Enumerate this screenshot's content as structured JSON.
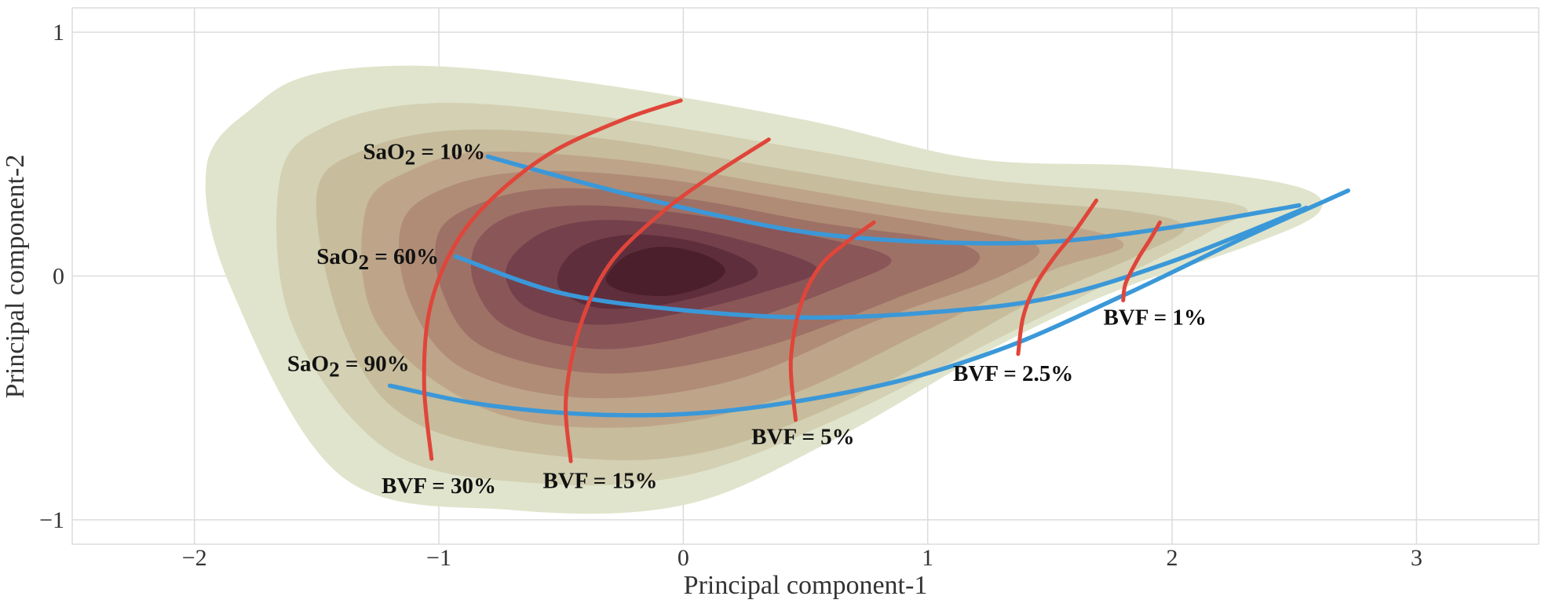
{
  "chart_data": {
    "type": "contour-density",
    "xlabel": "Principal component-1",
    "ylabel": "Principal component-2",
    "xlim": [
      -2.5,
      3.5
    ],
    "ylim": [
      -1.1,
      1.1
    ],
    "xticks": [
      -2,
      -1,
      0,
      1,
      2,
      3
    ],
    "xtick_labels": [
      "−2",
      "−1",
      "0",
      "1",
      "2",
      "3"
    ],
    "yticks": [
      -1,
      0,
      1
    ],
    "ytick_labels": [
      "−1",
      "0",
      "1"
    ],
    "grid": true,
    "density": {
      "center": [
        -0.2,
        0.02
      ],
      "levels": [
        {
          "color": "#e0e4cc",
          "points": [
            [
              -1.95,
              0.45
            ],
            [
              -1.75,
              0.7
            ],
            [
              -1.5,
              0.83
            ],
            [
              -1.0,
              0.86
            ],
            [
              -0.3,
              0.78
            ],
            [
              0.5,
              0.64
            ],
            [
              1.2,
              0.48
            ],
            [
              1.9,
              0.45
            ],
            [
              2.5,
              0.37
            ],
            [
              2.6,
              0.26
            ],
            [
              2.3,
              0.12
            ],
            [
              1.8,
              -0.05
            ],
            [
              1.3,
              -0.28
            ],
            [
              0.6,
              -0.68
            ],
            [
              0.0,
              -0.94
            ],
            [
              -0.7,
              -0.96
            ],
            [
              -1.4,
              -0.82
            ],
            [
              -1.85,
              -0.05
            ]
          ]
        },
        {
          "color": "#d3d0b3",
          "points": [
            [
              -1.65,
              0.4
            ],
            [
              -1.45,
              0.62
            ],
            [
              -1.0,
              0.71
            ],
            [
              -0.3,
              0.65
            ],
            [
              0.5,
              0.52
            ],
            [
              1.2,
              0.4
            ],
            [
              1.9,
              0.34
            ],
            [
              2.3,
              0.28
            ],
            [
              2.15,
              0.18
            ],
            [
              1.8,
              0.0
            ],
            [
              1.3,
              -0.25
            ],
            [
              0.6,
              -0.6
            ],
            [
              0.0,
              -0.82
            ],
            [
              -0.6,
              -0.85
            ],
            [
              -1.2,
              -0.72
            ],
            [
              -1.6,
              -0.2
            ]
          ]
        },
        {
          "color": "#c7bc9c",
          "points": [
            [
              -1.5,
              0.33
            ],
            [
              -1.3,
              0.52
            ],
            [
              -0.9,
              0.6
            ],
            [
              -0.3,
              0.56
            ],
            [
              0.4,
              0.44
            ],
            [
              1.1,
              0.33
            ],
            [
              1.8,
              0.27
            ],
            [
              2.05,
              0.2
            ],
            [
              1.85,
              0.08
            ],
            [
              1.4,
              -0.12
            ],
            [
              0.8,
              -0.45
            ],
            [
              0.1,
              -0.72
            ],
            [
              -0.5,
              -0.74
            ],
            [
              -1.1,
              -0.6
            ],
            [
              -1.38,
              -0.25
            ]
          ]
        },
        {
          "color": "#bea58a",
          "points": [
            [
              -1.3,
              0.27
            ],
            [
              -1.1,
              0.44
            ],
            [
              -0.8,
              0.51
            ],
            [
              -0.2,
              0.47
            ],
            [
              0.4,
              0.37
            ],
            [
              1.0,
              0.27
            ],
            [
              1.6,
              0.2
            ],
            [
              1.8,
              0.12
            ],
            [
              1.5,
              0.02
            ],
            [
              1.0,
              -0.22
            ],
            [
              0.4,
              -0.5
            ],
            [
              -0.2,
              -0.62
            ],
            [
              -0.8,
              -0.55
            ],
            [
              -1.25,
              -0.2
            ]
          ]
        },
        {
          "color": "#b08c76",
          "points": [
            [
              -1.15,
              0.22
            ],
            [
              -0.95,
              0.37
            ],
            [
              -0.6,
              0.43
            ],
            [
              -0.1,
              0.4
            ],
            [
              0.5,
              0.3
            ],
            [
              1.1,
              0.2
            ],
            [
              1.45,
              0.12
            ],
            [
              1.3,
              0.0
            ],
            [
              0.8,
              -0.18
            ],
            [
              0.2,
              -0.43
            ],
            [
              -0.4,
              -0.5
            ],
            [
              -0.9,
              -0.38
            ],
            [
              -1.12,
              -0.1
            ]
          ]
        },
        {
          "color": "#9e7166",
          "points": [
            [
              -1.0,
              0.18
            ],
            [
              -0.8,
              0.31
            ],
            [
              -0.5,
              0.36
            ],
            [
              0.0,
              0.32
            ],
            [
              0.55,
              0.22
            ],
            [
              1.1,
              0.14
            ],
            [
              1.2,
              0.05
            ],
            [
              0.9,
              -0.08
            ],
            [
              0.3,
              -0.3
            ],
            [
              -0.3,
              -0.4
            ],
            [
              -0.8,
              -0.3
            ],
            [
              -0.98,
              -0.08
            ]
          ]
        },
        {
          "color": "#8a5658",
          "points": [
            [
              -0.85,
              0.13
            ],
            [
              -0.7,
              0.25
            ],
            [
              -0.4,
              0.29
            ],
            [
              0.05,
              0.25
            ],
            [
              0.55,
              0.16
            ],
            [
              0.85,
              0.07
            ],
            [
              0.65,
              -0.04
            ],
            [
              0.2,
              -0.2
            ],
            [
              -0.3,
              -0.3
            ],
            [
              -0.7,
              -0.22
            ],
            [
              -0.85,
              -0.05
            ]
          ]
        },
        {
          "color": "#74404b",
          "points": [
            [
              -0.7,
              0.08
            ],
            [
              -0.55,
              0.19
            ],
            [
              -0.3,
              0.23
            ],
            [
              0.05,
              0.19
            ],
            [
              0.4,
              0.1
            ],
            [
              0.55,
              0.02
            ],
            [
              0.35,
              -0.06
            ],
            [
              0.0,
              -0.15
            ],
            [
              -0.35,
              -0.2
            ],
            [
              -0.62,
              -0.14
            ],
            [
              -0.72,
              -0.03
            ]
          ]
        },
        {
          "color": "#5f2e3c",
          "points": [
            [
              -0.5,
              0.04
            ],
            [
              -0.4,
              0.13
            ],
            [
              -0.2,
              0.17
            ],
            [
              0.05,
              0.14
            ],
            [
              0.25,
              0.07
            ],
            [
              0.3,
              0.0
            ],
            [
              0.15,
              -0.06
            ],
            [
              -0.1,
              -0.12
            ],
            [
              -0.35,
              -0.13
            ],
            [
              -0.5,
              -0.06
            ]
          ]
        },
        {
          "color": "#4c1f2d",
          "points": [
            [
              -0.3,
              0.02
            ],
            [
              -0.22,
              0.09
            ],
            [
              -0.08,
              0.12
            ],
            [
              0.08,
              0.09
            ],
            [
              0.17,
              0.03
            ],
            [
              0.12,
              -0.03
            ],
            [
              -0.05,
              -0.08
            ],
            [
              -0.22,
              -0.07
            ],
            [
              -0.31,
              -0.03
            ]
          ]
        }
      ]
    },
    "series": [
      {
        "name": "SaO2 = 10%",
        "kind": "saturation",
        "color": "#3b98d8",
        "points": [
          [
            -0.8,
            0.49
          ],
          [
            -0.4,
            0.38
          ],
          [
            0.0,
            0.28
          ],
          [
            0.5,
            0.18
          ],
          [
            1.0,
            0.14
          ],
          [
            1.5,
            0.14
          ],
          [
            2.0,
            0.2
          ],
          [
            2.52,
            0.29
          ]
        ]
      },
      {
        "name": "SaO2 = 60%",
        "kind": "saturation",
        "color": "#3b98d8",
        "points": [
          [
            -0.93,
            0.08
          ],
          [
            -0.5,
            -0.07
          ],
          [
            0.0,
            -0.14
          ],
          [
            0.5,
            -0.17
          ],
          [
            1.0,
            -0.15
          ],
          [
            1.5,
            -0.09
          ],
          [
            2.0,
            0.06
          ],
          [
            2.55,
            0.28
          ]
        ]
      },
      {
        "name": "SaO2 = 90%",
        "kind": "saturation",
        "color": "#3b98d8",
        "points": [
          [
            -1.2,
            -0.45
          ],
          [
            -0.8,
            -0.53
          ],
          [
            -0.3,
            -0.57
          ],
          [
            0.2,
            -0.55
          ],
          [
            0.8,
            -0.45
          ],
          [
            1.3,
            -0.3
          ],
          [
            1.8,
            -0.08
          ],
          [
            2.3,
            0.16
          ],
          [
            2.72,
            0.35
          ]
        ]
      },
      {
        "name": "BVF = 30%",
        "kind": "bvf",
        "color": "#e0453a",
        "points": [
          [
            -1.03,
            -0.75
          ],
          [
            -1.06,
            -0.45
          ],
          [
            -1.04,
            -0.15
          ],
          [
            -0.95,
            0.1
          ],
          [
            -0.8,
            0.3
          ],
          [
            -0.55,
            0.5
          ],
          [
            -0.25,
            0.64
          ],
          [
            -0.01,
            0.72
          ]
        ]
      },
      {
        "name": "BVF = 15%",
        "kind": "bvf",
        "color": "#e0453a",
        "points": [
          [
            -0.46,
            -0.76
          ],
          [
            -0.48,
            -0.5
          ],
          [
            -0.42,
            -0.2
          ],
          [
            -0.3,
            0.05
          ],
          [
            -0.1,
            0.25
          ],
          [
            0.1,
            0.4
          ],
          [
            0.35,
            0.56
          ]
        ]
      },
      {
        "name": "BVF = 5%",
        "kind": "bvf",
        "color": "#e0453a",
        "points": [
          [
            0.46,
            -0.59
          ],
          [
            0.44,
            -0.35
          ],
          [
            0.48,
            -0.12
          ],
          [
            0.56,
            0.04
          ],
          [
            0.67,
            0.14
          ],
          [
            0.78,
            0.22
          ]
        ]
      },
      {
        "name": "BVF = 2.5%",
        "kind": "bvf",
        "color": "#e0453a",
        "points": [
          [
            1.37,
            -0.32
          ],
          [
            1.39,
            -0.17
          ],
          [
            1.44,
            -0.04
          ],
          [
            1.52,
            0.08
          ],
          [
            1.6,
            0.18
          ],
          [
            1.69,
            0.31
          ]
        ]
      },
      {
        "name": "BVF = 1%",
        "kind": "bvf",
        "color": "#e0453a",
        "points": [
          [
            1.8,
            -0.1
          ],
          [
            1.81,
            -0.03
          ],
          [
            1.86,
            0.07
          ],
          [
            1.91,
            0.15
          ],
          [
            1.95,
            0.22
          ]
        ]
      }
    ],
    "annotations": [
      {
        "prefix": "SaO",
        "sub": "2",
        "suffix": " = 10%",
        "x": -0.81,
        "y": 0.48,
        "anchor": "end"
      },
      {
        "prefix": "SaO",
        "sub": "2",
        "suffix": " = 60%",
        "x": -1.0,
        "y": 0.05,
        "anchor": "end"
      },
      {
        "prefix": "SaO",
        "sub": "2",
        "suffix": " = 90%",
        "x": -1.12,
        "y": -0.39,
        "anchor": "end"
      },
      {
        "text": "BVF = 30%",
        "x": -1.0,
        "y": -0.89,
        "anchor": "middle"
      },
      {
        "text": "BVF = 15%",
        "x": -0.34,
        "y": -0.87,
        "anchor": "middle"
      },
      {
        "text": "BVF = 5%",
        "x": 0.49,
        "y": -0.69,
        "anchor": "middle"
      },
      {
        "text": "BVF = 2.5%",
        "x": 1.35,
        "y": -0.43,
        "anchor": "middle"
      },
      {
        "text": "BVF = 1%",
        "x": 1.93,
        "y": -0.2,
        "anchor": "middle"
      }
    ]
  }
}
